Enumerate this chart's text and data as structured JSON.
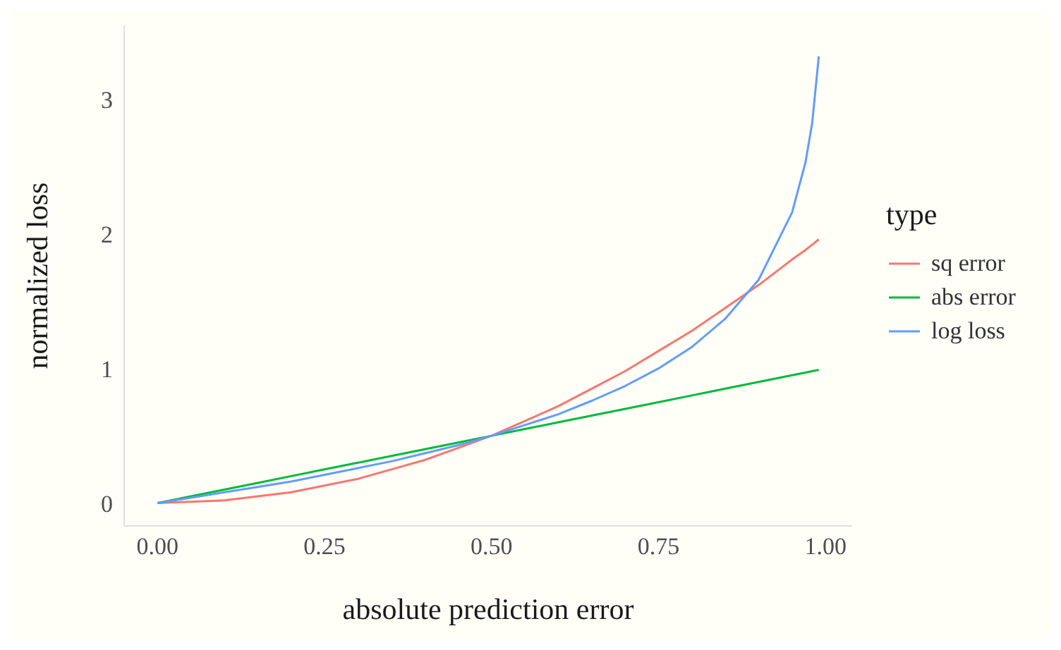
{
  "chart_data": {
    "type": "line",
    "xlabel": "absolute prediction error",
    "ylabel": "normalized loss",
    "legend_title": "type",
    "legend": "right",
    "marker": "none",
    "line_style": "solid",
    "x": [
      0,
      0.05,
      0.1,
      0.15,
      0.2,
      0.25,
      0.3,
      0.35,
      0.4,
      0.45,
      0.5,
      0.55,
      0.6,
      0.65,
      0.7,
      0.75,
      0.8,
      0.85,
      0.9,
      0.95,
      0.97,
      0.98,
      0.99
    ],
    "series": [
      {
        "name": "sq error",
        "color": "#f8766d",
        "values": [
          0,
          0.01,
          0.02,
          0.05,
          0.08,
          0.13,
          0.18,
          0.25,
          0.32,
          0.41,
          0.5,
          0.61,
          0.72,
          0.85,
          0.98,
          1.13,
          1.28,
          1.45,
          1.62,
          1.81,
          1.88,
          1.92,
          1.96
        ]
      },
      {
        "name": "abs error",
        "color": "#00ba38",
        "values": [
          0,
          0.05,
          0.1,
          0.15,
          0.2,
          0.25,
          0.3,
          0.35,
          0.4,
          0.45,
          0.5,
          0.55,
          0.6,
          0.65,
          0.7,
          0.75,
          0.8,
          0.85,
          0.9,
          0.95,
          0.97,
          0.98,
          0.99
        ]
      },
      {
        "name": "log loss",
        "color": "#619cff",
        "values": [
          0,
          0.04,
          0.08,
          0.12,
          0.16,
          0.21,
          0.26,
          0.31,
          0.37,
          0.43,
          0.5,
          0.58,
          0.66,
          0.76,
          0.87,
          1.0,
          1.16,
          1.37,
          1.66,
          2.16,
          2.53,
          2.82,
          3.32
        ]
      }
    ],
    "xlim": [
      -0.05,
      1.04
    ],
    "ylim": [
      -0.17,
      3.55
    ],
    "xticks": [
      {
        "value": 0,
        "label": "0.00"
      },
      {
        "value": 0.25,
        "label": "0.25"
      },
      {
        "value": 0.5,
        "label": "0.50"
      },
      {
        "value": 0.75,
        "label": "0.75"
      },
      {
        "value": 1,
        "label": "1.00"
      }
    ],
    "yticks": [
      0,
      1,
      2,
      3
    ]
  }
}
